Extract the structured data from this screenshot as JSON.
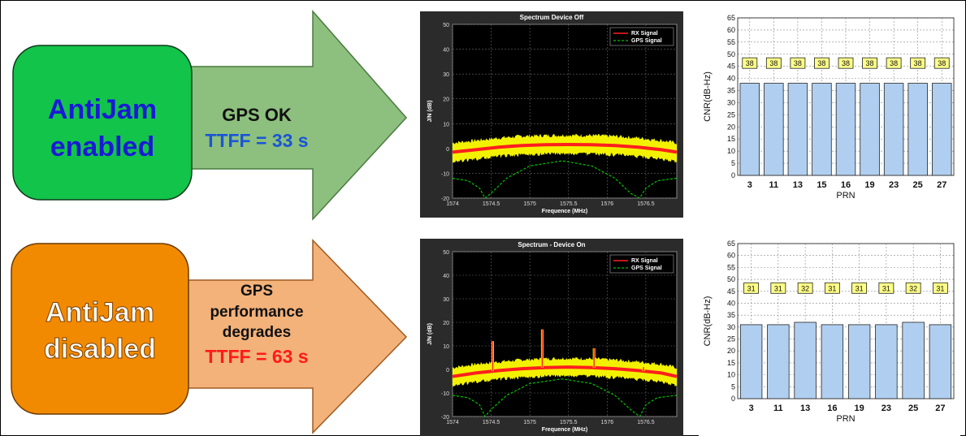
{
  "rows": [
    {
      "status_box": {
        "line1": "AntiJam",
        "line2": "enabled",
        "color": "#12c44a",
        "text_color": "#1a1ad6"
      },
      "arrow": {
        "lines": [
          "GPS OK"
        ],
        "ttff": "TTFF = 33 s",
        "color": "#8dc07e",
        "ttff_color": "#1a55d6"
      }
    },
    {
      "status_box": {
        "line1": "AntiJam",
        "line2": "disabled",
        "color": "#f28a00",
        "text_color": "#ffffff"
      },
      "arrow": {
        "lines": [
          "GPS",
          "performance",
          "degrades"
        ],
        "ttff": "TTFF = 63 s",
        "color": "#f3b27a",
        "ttff_color": "#ff1a1a"
      }
    }
  ],
  "chart_data": [
    {
      "type": "line",
      "title": "Spectrum  Device Off",
      "xlabel": "Frequence (MHz)",
      "ylabel": "J/N (dB)",
      "xlim": [
        1574,
        1576.9
      ],
      "ylim": [
        -20,
        50
      ],
      "xticks": [
        "1574",
        "1574.5",
        "1575",
        "1575.5",
        "1576",
        "1576.5"
      ],
      "yticks": [
        "-20",
        "-10",
        "0",
        "10",
        "20",
        "30",
        "40",
        "50"
      ],
      "grid": true,
      "legend": "top-right",
      "background": "#000000",
      "series": [
        {
          "name": "RX Signal",
          "color": "#ff1e1e",
          "band_color": "#ffff00",
          "x": [
            1574.0,
            1574.3,
            1574.6,
            1574.9,
            1575.2,
            1575.5,
            1575.8,
            1576.1,
            1576.4,
            1576.7,
            1576.9
          ],
          "y": [
            -1.5,
            -0.5,
            0.5,
            1.2,
            1.5,
            1.6,
            1.5,
            1.2,
            0.5,
            -0.5,
            -1.5
          ],
          "spikes": []
        },
        {
          "name": "GPS Signal",
          "color": "#00c400",
          "dashed": true,
          "x": [
            1574.0,
            1574.2,
            1574.35,
            1574.42,
            1574.5,
            1574.7,
            1575.0,
            1575.42,
            1575.8,
            1576.1,
            1576.3,
            1576.42,
            1576.5,
            1576.65,
            1576.9
          ],
          "y": [
            -12,
            -13,
            -16,
            -20,
            -18,
            -12,
            -7,
            -5,
            -7,
            -12,
            -18,
            -20,
            -16,
            -13,
            -12
          ]
        }
      ]
    },
    {
      "type": "bar",
      "title": "",
      "xlabel": "PRN",
      "ylabel": "CNR(dB-Hz)",
      "categories": [
        "3",
        "11",
        "13",
        "15",
        "16",
        "19",
        "23",
        "25",
        "27"
      ],
      "values": [
        38,
        38,
        38,
        38,
        38,
        38,
        38,
        38,
        38
      ],
      "data_labels": [
        "38",
        "38",
        "38",
        "38",
        "38",
        "38",
        "38",
        "38",
        "38"
      ],
      "ylim": [
        0,
        65
      ],
      "yticks": [
        "0",
        "5",
        "10",
        "15",
        "20",
        "25",
        "30",
        "35",
        "40",
        "45",
        "50",
        "55",
        "60",
        "65"
      ],
      "grid": true,
      "bar_color": "#b0cff0",
      "label_bg": "#ffff88"
    },
    {
      "type": "line",
      "title": "Spectrum - Device On",
      "xlabel": "Frequence (MHz)",
      "ylabel": "J/N (dB)",
      "xlim": [
        1574,
        1576.9
      ],
      "ylim": [
        -20,
        50
      ],
      "xticks": [
        "1574",
        "1574.5",
        "1575",
        "1575.5",
        "1576",
        "1576.5"
      ],
      "yticks": [
        "-20",
        "-10",
        "0",
        "10",
        "20",
        "30",
        "40",
        "50"
      ],
      "grid": true,
      "legend": "top-right",
      "background": "#000000",
      "series": [
        {
          "name": "RX Signal",
          "color": "#ff1e1e",
          "band_color": "#ffff00",
          "x": [
            1574.0,
            1574.3,
            1574.6,
            1574.9,
            1575.2,
            1575.5,
            1575.8,
            1576.1,
            1576.4,
            1576.7,
            1576.9
          ],
          "y": [
            -3,
            -1.5,
            -0.5,
            0.3,
            0.8,
            1.0,
            0.8,
            0.3,
            -0.5,
            -1.5,
            -3
          ],
          "spikes": [
            [
              1574.52,
              12
            ],
            [
              1575.16,
              17
            ],
            [
              1575.83,
              9
            ],
            [
              1576.47,
              1
            ]
          ]
        },
        {
          "name": "GPS Signal",
          "color": "#00c400",
          "dashed": true,
          "x": [
            1574.0,
            1574.2,
            1574.35,
            1574.42,
            1574.5,
            1574.7,
            1575.0,
            1575.42,
            1575.8,
            1576.1,
            1576.3,
            1576.42,
            1576.5,
            1576.65,
            1576.9
          ],
          "y": [
            -11,
            -12,
            -15,
            -20,
            -17,
            -11,
            -6,
            -4,
            -6,
            -11,
            -17,
            -20,
            -15,
            -12,
            -11
          ]
        }
      ]
    },
    {
      "type": "bar",
      "title": "",
      "xlabel": "PRN",
      "ylabel": "CNR(dB-Hz)",
      "categories": [
        "3",
        "11",
        "13",
        "16",
        "19",
        "23",
        "25",
        "27"
      ],
      "values": [
        31,
        31,
        32,
        31,
        31,
        31,
        32,
        31
      ],
      "data_labels": [
        "31",
        "31",
        "32",
        "31",
        "31",
        "31",
        "32",
        "31"
      ],
      "ylim": [
        0,
        65
      ],
      "yticks": [
        "0",
        "5",
        "10",
        "15",
        "20",
        "25",
        "30",
        "35",
        "40",
        "45",
        "50",
        "55",
        "60",
        "65"
      ],
      "grid": true,
      "bar_color": "#b0cff0",
      "label_bg": "#ffff88"
    }
  ]
}
